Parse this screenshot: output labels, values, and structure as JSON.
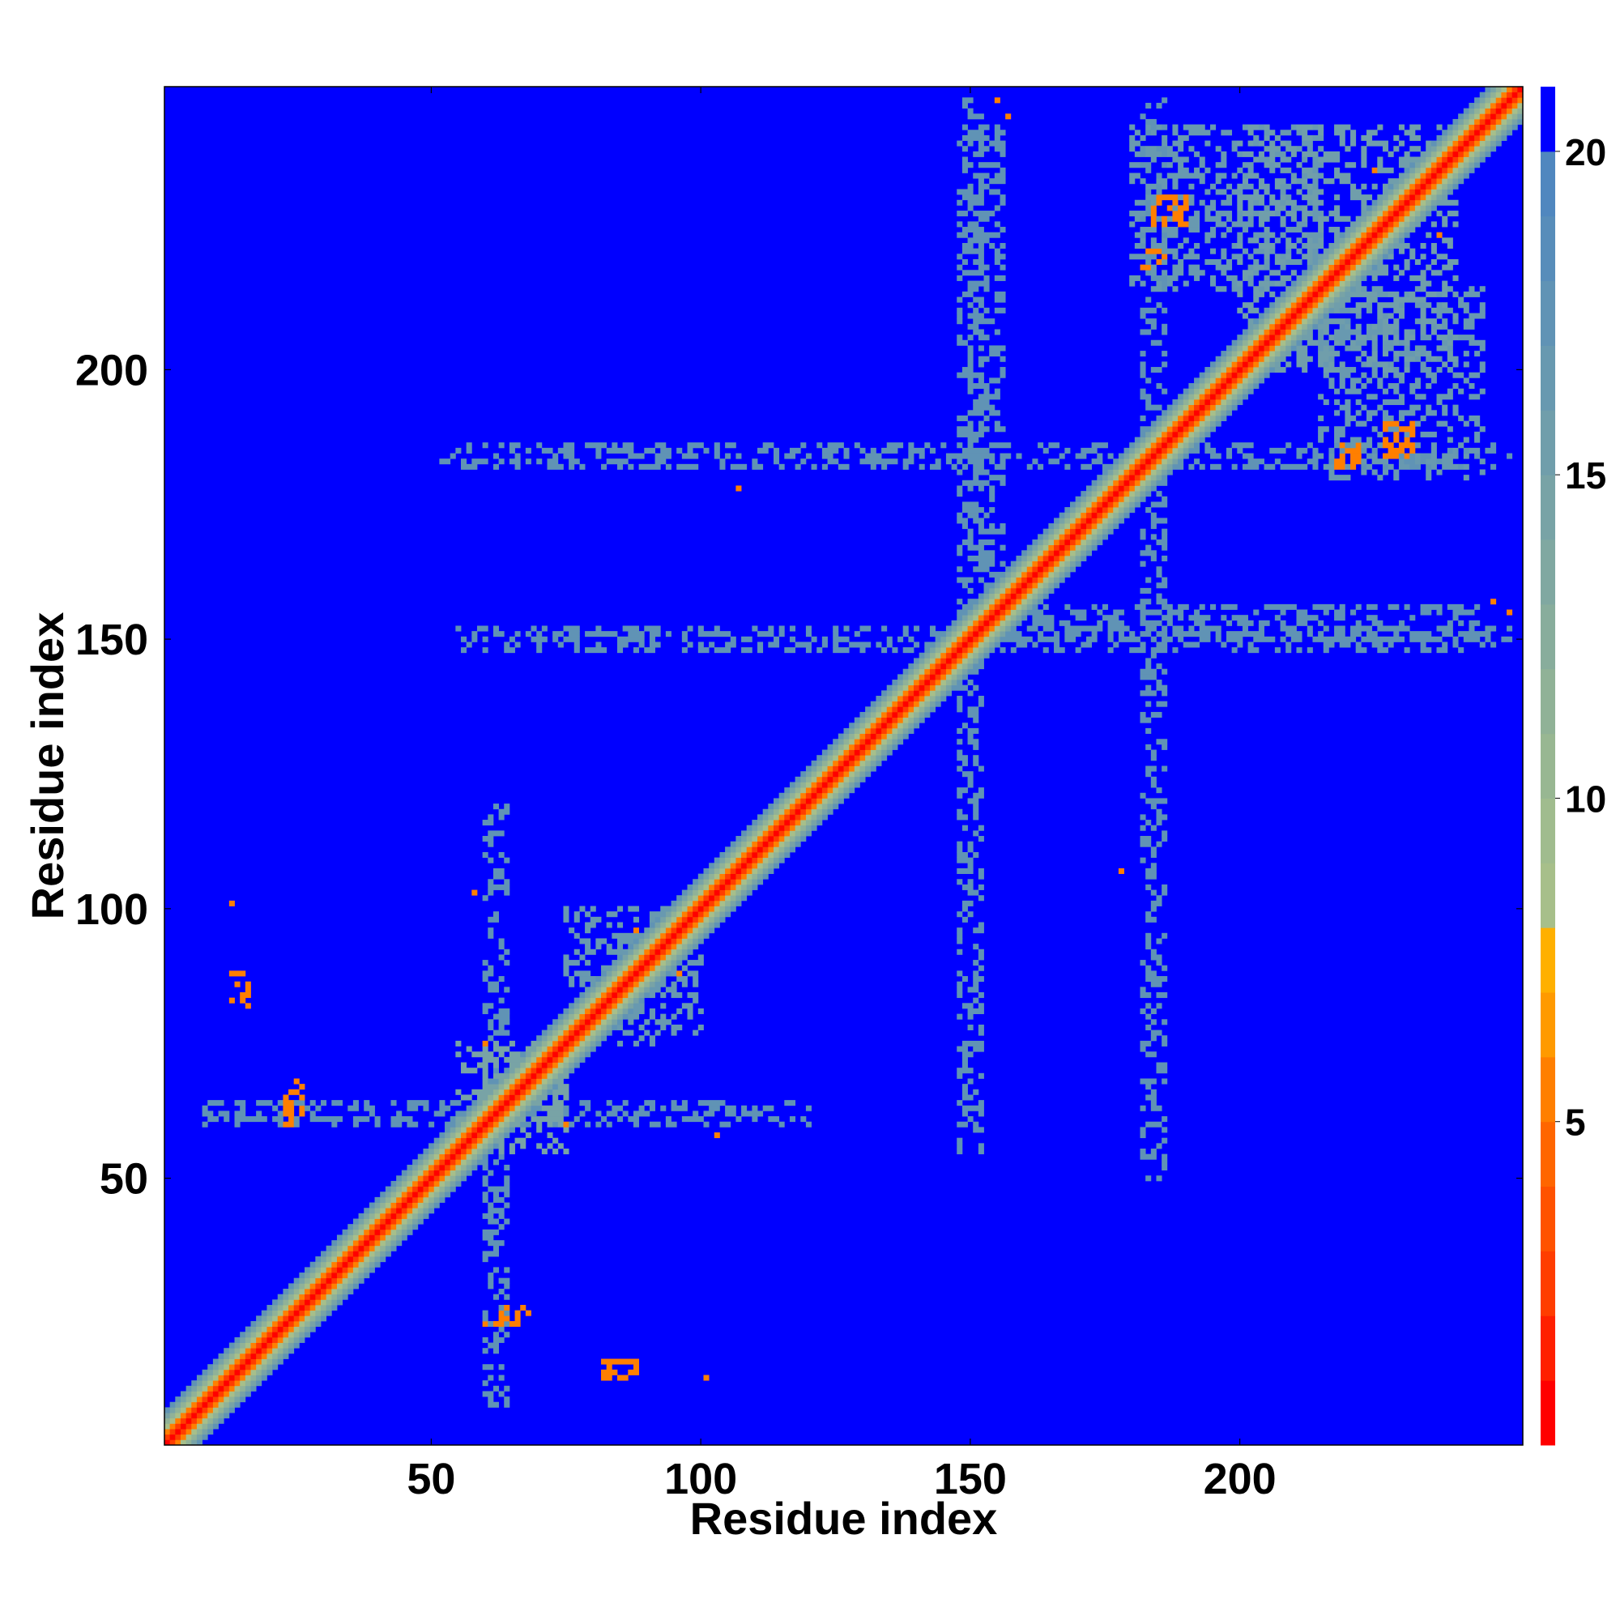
{
  "chart_data": {
    "type": "heatmap",
    "title": "",
    "xlabel": "Residue index",
    "ylabel": "Residue index",
    "n_residues": 252,
    "xlim": [
      1,
      252
    ],
    "ylim": [
      1,
      252
    ],
    "x_ticks": [
      50,
      100,
      150,
      200
    ],
    "y_ticks": [
      50,
      100,
      150,
      200
    ],
    "x_tick_labels": [
      "50",
      "100",
      "150",
      "200"
    ],
    "y_tick_labels": [
      "50",
      "100",
      "150",
      "200"
    ],
    "colorbar": {
      "range": [
        0,
        21
      ],
      "ticks": [
        5,
        10,
        15,
        20
      ],
      "tick_labels": [
        "5",
        "10",
        "15",
        "20"
      ],
      "levels": [
        {
          "max": 1,
          "color": "#ff0000"
        },
        {
          "max": 2,
          "color": "#ff2000"
        },
        {
          "max": 3,
          "color": "#ff3d00"
        },
        {
          "max": 4,
          "color": "#ff5200"
        },
        {
          "max": 5,
          "color": "#ff6600"
        },
        {
          "max": 6,
          "color": "#ff7f00"
        },
        {
          "max": 7,
          "color": "#ff9a00"
        },
        {
          "max": 8,
          "color": "#ffb000"
        },
        {
          "max": 9,
          "color": "#a7bf8a"
        },
        {
          "max": 10,
          "color": "#a0bc8e"
        },
        {
          "max": 11,
          "color": "#98b792"
        },
        {
          "max": 12,
          "color": "#90b297"
        },
        {
          "max": 13,
          "color": "#88ad9c"
        },
        {
          "max": 14,
          "color": "#80a8a1"
        },
        {
          "max": 15,
          "color": "#78a3a6"
        },
        {
          "max": 16,
          "color": "#709eab"
        },
        {
          "max": 17,
          "color": "#6899b0"
        },
        {
          "max": 18,
          "color": "#6093b5"
        },
        {
          "max": 19,
          "color": "#588dba"
        },
        {
          "max": 20,
          "color": "#5087bf"
        },
        {
          "max": 21,
          "color": "#0000ff"
        }
      ]
    },
    "background_value": 21,
    "diagonal_band": [
      {
        "offset": 0,
        "value": 1
      },
      {
        "offset": 1,
        "value": 3
      },
      {
        "offset": 2,
        "value": 6
      },
      {
        "offset": 3,
        "value": 9
      },
      {
        "offset": 4,
        "value": 12
      },
      {
        "offset": 5,
        "value": 15
      },
      {
        "offset": 6,
        "value": 18
      }
    ],
    "contact_patches": [
      {
        "x": [
          13,
          16
        ],
        "y": [
          82,
          88
        ],
        "value": 6
      },
      {
        "x": [
          82,
          88
        ],
        "y": [
          13,
          16
        ],
        "value": 6
      },
      {
        "x": [
          23,
          24
        ],
        "y": [
          60,
          66
        ],
        "value": 6
      },
      {
        "x": [
          60,
          66
        ],
        "y": [
          23,
          24
        ],
        "value": 6
      },
      {
        "x": [
          62,
          68
        ],
        "y": [
          25,
          26
        ],
        "value": 6
      },
      {
        "x": [
          25,
          26
        ],
        "y": [
          62,
          68
        ],
        "value": 6
      },
      {
        "x": [
          184,
          190
        ],
        "y": [
          227,
          232
        ],
        "value": 6
      },
      {
        "x": [
          227,
          232
        ],
        "y": [
          184,
          190
        ],
        "value": 6
      },
      {
        "x": [
          218,
          222
        ],
        "y": [
          182,
          186
        ],
        "value": 6
      },
      {
        "x": [
          182,
          186
        ],
        "y": [
          218,
          222
        ],
        "value": 6
      },
      {
        "x": [
          60,
          75
        ],
        "y": [
          55,
          75
        ],
        "value": 15
      },
      {
        "x": [
          55,
          75
        ],
        "y": [
          60,
          75
        ],
        "value": 15
      },
      {
        "x": [
          200,
          240
        ],
        "y": [
          200,
          245
        ],
        "value": 16
      },
      {
        "x": [
          180,
          215
        ],
        "y": [
          215,
          245
        ],
        "value": 17
      },
      {
        "x": [
          215,
          245
        ],
        "y": [
          180,
          215
        ],
        "value": 17
      },
      {
        "x": [
          150,
          245
        ],
        "y": [
          150,
          156
        ],
        "value": 18
      },
      {
        "x": [
          150,
          156
        ],
        "y": [
          150,
          245
        ],
        "value": 18
      },
      {
        "x": [
          50,
          250
        ],
        "y": [
          182,
          186
        ],
        "value": 18
      },
      {
        "x": [
          182,
          186
        ],
        "y": [
          50,
          250
        ],
        "value": 18
      },
      {
        "x": [
          8,
          120
        ],
        "y": [
          60,
          64
        ],
        "value": 18
      },
      {
        "x": [
          60,
          64
        ],
        "y": [
          8,
          120
        ],
        "value": 18
      },
      {
        "x": [
          148,
          152
        ],
        "y": [
          55,
          250
        ],
        "value": 18
      },
      {
        "x": [
          55,
          250
        ],
        "y": [
          148,
          152
        ],
        "value": 18
      },
      {
        "x": [
          85,
          100
        ],
        "y": [
          75,
          95
        ],
        "value": 17
      },
      {
        "x": [
          75,
          95
        ],
        "y": [
          85,
          100
        ],
        "value": 17
      }
    ],
    "isolated_contacts": [
      [
        13,
        101
      ],
      [
        101,
        13
      ],
      [
        58,
        103
      ],
      [
        103,
        58
      ],
      [
        101,
        13
      ],
      [
        96,
        88
      ],
      [
        88,
        96
      ],
      [
        75,
        60
      ],
      [
        60,
        75
      ],
      [
        155,
        250
      ],
      [
        250,
        155
      ],
      [
        247,
        157
      ],
      [
        157,
        247
      ],
      [
        178,
        107
      ],
      [
        107,
        178
      ],
      [
        237,
        225
      ],
      [
        225,
        237
      ]
    ]
  }
}
